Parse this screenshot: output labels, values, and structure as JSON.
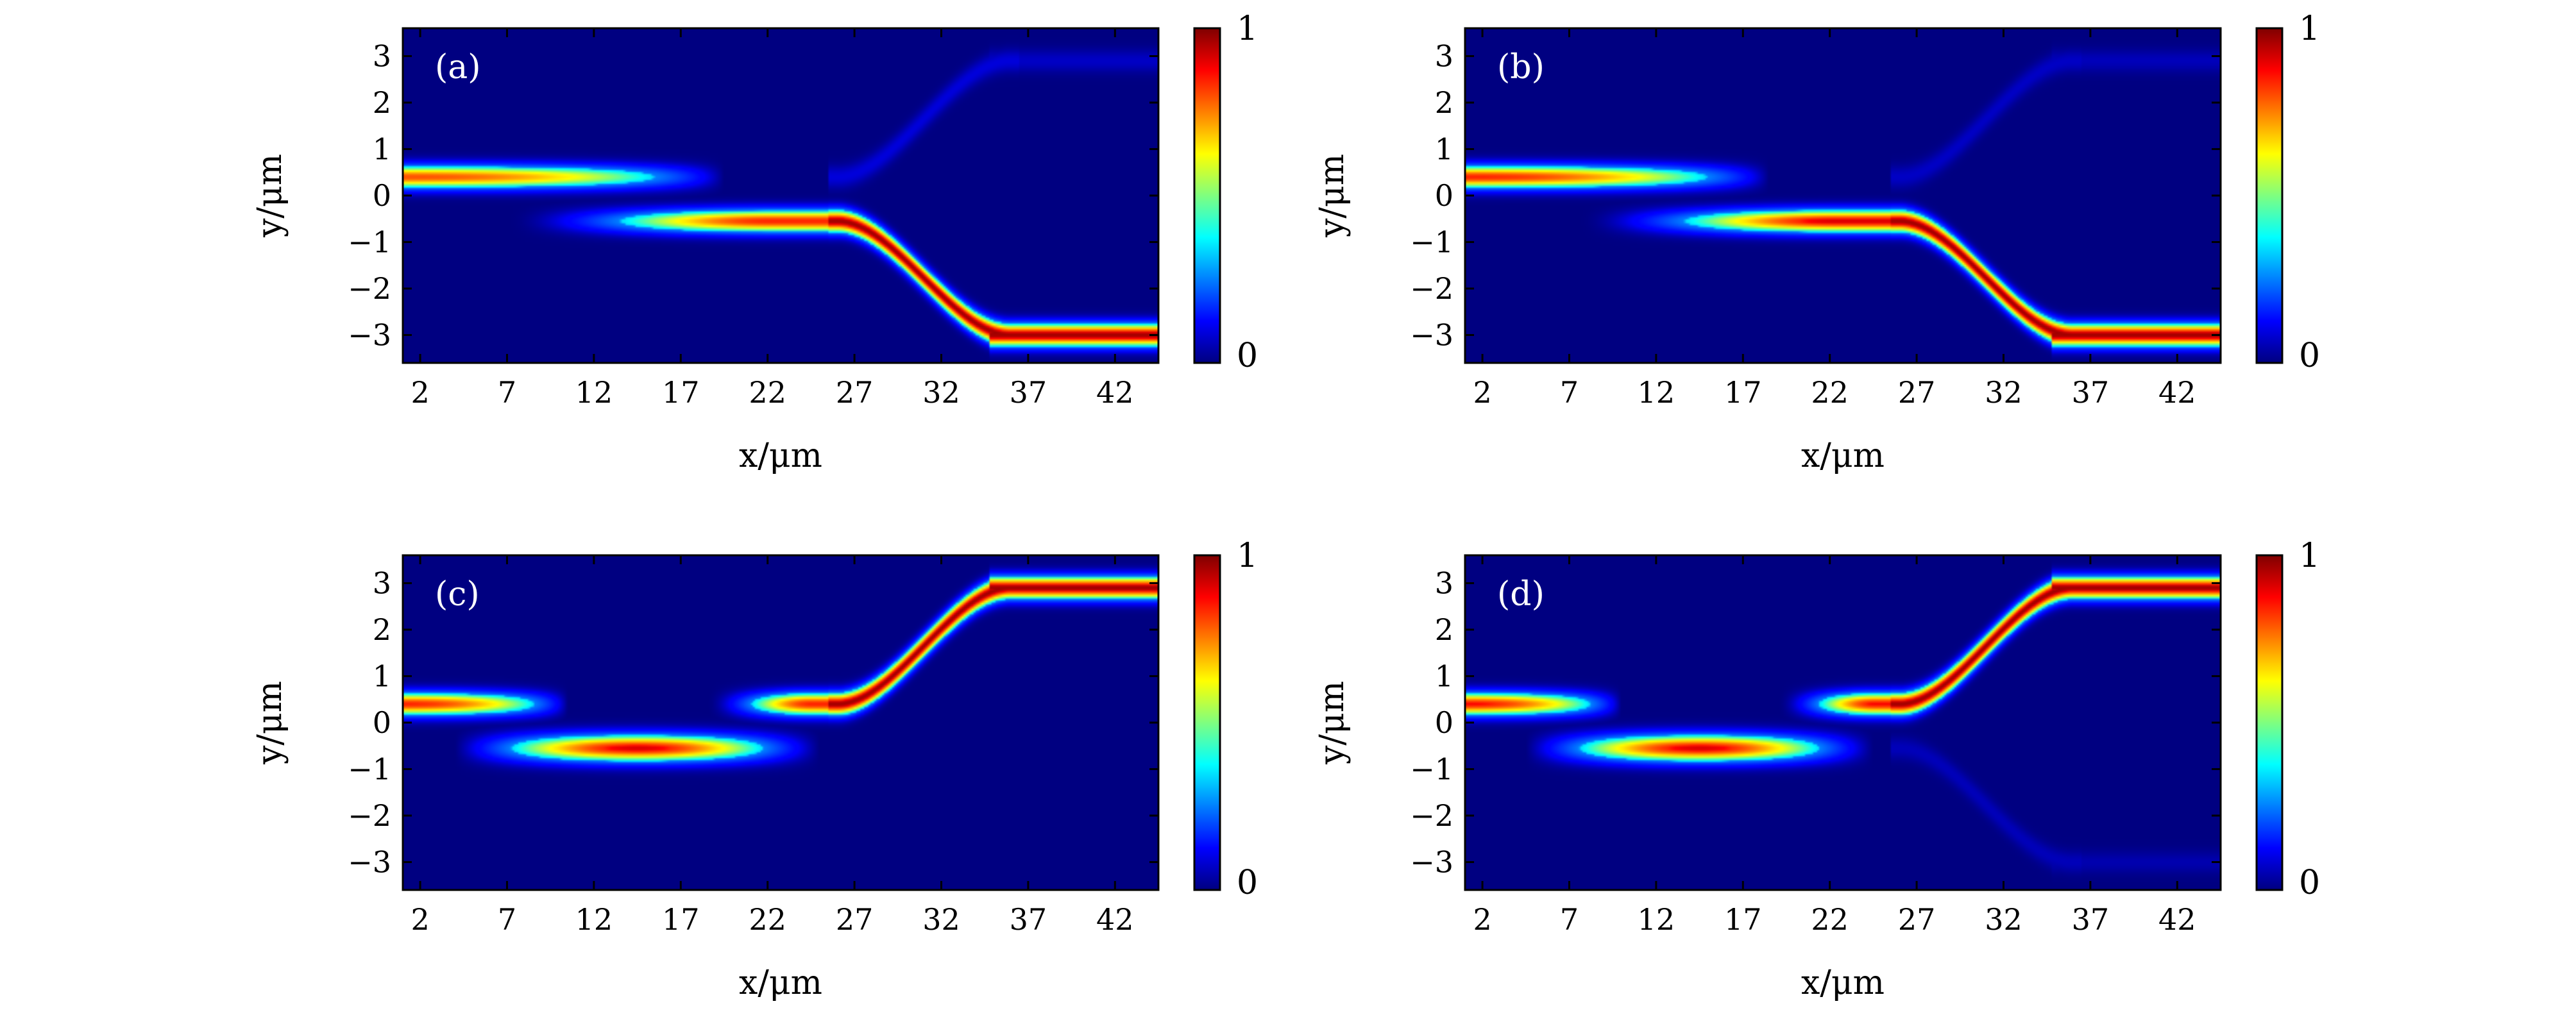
{
  "figure": {
    "colorbar": {
      "min_label": "0",
      "max_label": "1",
      "colormap": "jet",
      "stops": [
        "#00007f",
        "#0000ff",
        "#007fff",
        "#00ffff",
        "#7fff7f",
        "#ffff00",
        "#ff7f00",
        "#ff0000",
        "#7f0000"
      ]
    },
    "background_color": "#00008f"
  },
  "chart_data": [
    {
      "type": "heatmap",
      "panel_label": "(a)",
      "xlabel": "x/μm",
      "ylabel": "y/μm",
      "xlim": [
        1.0,
        44.5
      ],
      "ylim": [
        -3.6,
        3.6
      ],
      "xticks": [
        "2",
        "7",
        "12",
        "17",
        "22",
        "27",
        "32",
        "37",
        "42"
      ],
      "yticks": [
        "3",
        "2",
        "1",
        "0",
        "−1",
        "−2",
        "−3"
      ],
      "colorbar_range": [
        0,
        1
      ],
      "modes": [
        {
          "y": 0.4,
          "x_start": 1.0,
          "x_end": 19.5,
          "peak": 0.85,
          "profile": "decay"
        },
        {
          "y": -0.55,
          "x_start": 7.0,
          "x_end": 26.0,
          "peak": 0.9,
          "profile": "grow"
        },
        {
          "path": "s-bend",
          "x_start": 26.0,
          "x_end": 36.0,
          "y_start": -0.55,
          "y_end": -3.0,
          "peak": 1.0
        },
        {
          "y": -3.0,
          "x_start": 36.0,
          "x_end": 44.5,
          "peak": 1.0,
          "profile": "flat"
        },
        {
          "path": "s-bend",
          "x_start": 26.0,
          "x_end": 36.0,
          "y_start": 0.4,
          "y_end": 2.9,
          "peak": 0.08
        },
        {
          "y": 2.9,
          "x_start": 36.0,
          "x_end": 44.5,
          "peak": 0.06,
          "profile": "flat"
        }
      ]
    },
    {
      "type": "heatmap",
      "panel_label": "(b)",
      "xlabel": "x/μm",
      "ylabel": "y/μm",
      "xlim": [
        1.0,
        44.5
      ],
      "ylim": [
        -3.6,
        3.6
      ],
      "xticks": [
        "2",
        "7",
        "12",
        "17",
        "22",
        "27",
        "32",
        "37",
        "42"
      ],
      "yticks": [
        "3",
        "2",
        "1",
        "0",
        "−1",
        "−2",
        "−3"
      ],
      "colorbar_range": [
        0,
        1
      ],
      "modes": [
        {
          "y": 0.4,
          "x_start": 1.0,
          "x_end": 18.5,
          "peak": 0.9,
          "profile": "decay"
        },
        {
          "y": -0.55,
          "x_start": 7.5,
          "x_end": 26.0,
          "peak": 0.95,
          "profile": "grow"
        },
        {
          "path": "s-bend",
          "x_start": 26.0,
          "x_end": 36.0,
          "y_start": -0.55,
          "y_end": -3.0,
          "peak": 1.0
        },
        {
          "y": -3.0,
          "x_start": 36.0,
          "x_end": 44.5,
          "peak": 1.0,
          "profile": "flat"
        },
        {
          "path": "s-bend",
          "x_start": 26.0,
          "x_end": 36.0,
          "y_start": 0.4,
          "y_end": 2.9,
          "peak": 0.06
        },
        {
          "y": 2.9,
          "x_start": 36.0,
          "x_end": 44.5,
          "peak": 0.05,
          "profile": "flat"
        }
      ]
    },
    {
      "type": "heatmap",
      "panel_label": "(c)",
      "xlabel": "x/μm",
      "ylabel": "y/μm",
      "xlim": [
        1.0,
        44.5
      ],
      "ylim": [
        -3.6,
        3.6
      ],
      "xticks": [
        "2",
        "7",
        "12",
        "17",
        "22",
        "27",
        "32",
        "37",
        "42"
      ],
      "yticks": [
        "3",
        "2",
        "1",
        "0",
        "−1",
        "−2",
        "−3"
      ],
      "colorbar_range": [
        0,
        1
      ],
      "modes": [
        {
          "y": 0.4,
          "x_start": 1.0,
          "x_end": 10.5,
          "peak": 0.9,
          "profile": "decay"
        },
        {
          "y": -0.55,
          "x_start": 4.0,
          "x_end": 25.0,
          "peak": 0.95,
          "profile": "hump",
          "x_peak": 14.5
        },
        {
          "y": 0.4,
          "x_start": 18.5,
          "x_end": 26.0,
          "peak": 0.9,
          "profile": "grow"
        },
        {
          "path": "s-bend",
          "x_start": 26.0,
          "x_end": 36.0,
          "y_start": 0.4,
          "y_end": 2.9,
          "peak": 1.0
        },
        {
          "y": 2.9,
          "x_start": 36.0,
          "x_end": 44.5,
          "peak": 1.0,
          "profile": "flat"
        }
      ]
    },
    {
      "type": "heatmap",
      "panel_label": "(d)",
      "xlabel": "x/μm",
      "ylabel": "y/μm",
      "xlim": [
        1.0,
        44.5
      ],
      "ylim": [
        -3.6,
        3.6
      ],
      "xticks": [
        "2",
        "7",
        "12",
        "17",
        "22",
        "27",
        "32",
        "37",
        "42"
      ],
      "yticks": [
        "3",
        "2",
        "1",
        "0",
        "−1",
        "−2",
        "−3"
      ],
      "colorbar_range": [
        0,
        1
      ],
      "modes": [
        {
          "y": 0.4,
          "x_start": 1.0,
          "x_end": 10.0,
          "peak": 0.92,
          "profile": "decay"
        },
        {
          "y": -0.55,
          "x_start": 4.5,
          "x_end": 24.5,
          "peak": 0.95,
          "profile": "hump",
          "x_peak": 14.5
        },
        {
          "y": 0.4,
          "x_start": 19.0,
          "x_end": 26.0,
          "peak": 0.92,
          "profile": "grow"
        },
        {
          "path": "s-bend",
          "x_start": 26.0,
          "x_end": 36.0,
          "y_start": 0.4,
          "y_end": 2.9,
          "peak": 1.0
        },
        {
          "y": 2.9,
          "x_start": 36.0,
          "x_end": 44.5,
          "peak": 1.0,
          "profile": "flat"
        },
        {
          "path": "s-bend",
          "x_start": 26.0,
          "x_end": 36.0,
          "y_start": -0.55,
          "y_end": -3.0,
          "peak": 0.05
        },
        {
          "y": -3.0,
          "x_start": 36.0,
          "x_end": 44.5,
          "peak": 0.04,
          "profile": "flat"
        }
      ]
    }
  ]
}
